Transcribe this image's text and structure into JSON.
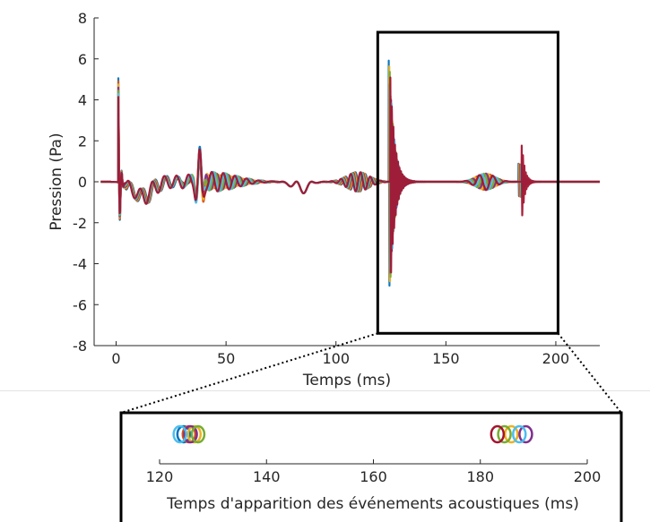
{
  "chart_data": [
    {
      "type": "line",
      "xlabel": "Temps (ms)",
      "ylabel": "Pression (Pa)",
      "xlim": [
        -10,
        220
      ],
      "ylim": [
        -8,
        8
      ],
      "x_ticks": [
        0,
        50,
        100,
        150,
        200
      ],
      "y_ticks": [
        8,
        6,
        4,
        2,
        0,
        -2,
        -4,
        -6,
        -8
      ],
      "grid": false,
      "highlight_box": {
        "x": [
          119,
          201
        ],
        "y": [
          -7.4,
          7.3
        ]
      },
      "series_colors": [
        "#0072BD",
        "#D95319",
        "#EDB120",
        "#7E2F8E",
        "#77AC30",
        "#4DBEEE",
        "#A2142F"
      ],
      "events": [
        {
          "t": 1,
          "amplitude": 5.3,
          "kind": "direct"
        },
        {
          "t": 12,
          "amplitude": -1.3,
          "kind": "wave"
        },
        {
          "t": 38,
          "amplitude": 1.6,
          "kind": "wave"
        },
        {
          "t": 110,
          "amplitude": 0.6,
          "kind": "wave"
        },
        {
          "t": 126,
          "amplitude": 6.3,
          "kind": "burst"
        },
        {
          "t": 168,
          "amplitude": 0.4,
          "kind": "wave"
        },
        {
          "t": 185,
          "amplitude": 2.1,
          "kind": "burst"
        }
      ]
    },
    {
      "type": "scatter",
      "xlabel": "Temps d'apparition des événements acoustiques (ms)",
      "xlim": [
        120,
        200
      ],
      "x_ticks": [
        120,
        140,
        160,
        180,
        200
      ],
      "series": [
        {
          "color": "#0072BD",
          "x": [
            124.5
          ]
        },
        {
          "color": "#D95319",
          "x": [
            125.5
          ]
        },
        {
          "color": "#EDB120",
          "x": [
            126.5,
            185.8
          ]
        },
        {
          "color": "#7E2F8E",
          "x": [
            125.8,
            188.5
          ]
        },
        {
          "color": "#77AC30",
          "x": [
            127.2,
            184.5
          ]
        },
        {
          "color": "#4DBEEE",
          "x": [
            123.8,
            187.3
          ]
        },
        {
          "color": "#A2142F",
          "x": [
            183.2
          ]
        }
      ]
    }
  ]
}
